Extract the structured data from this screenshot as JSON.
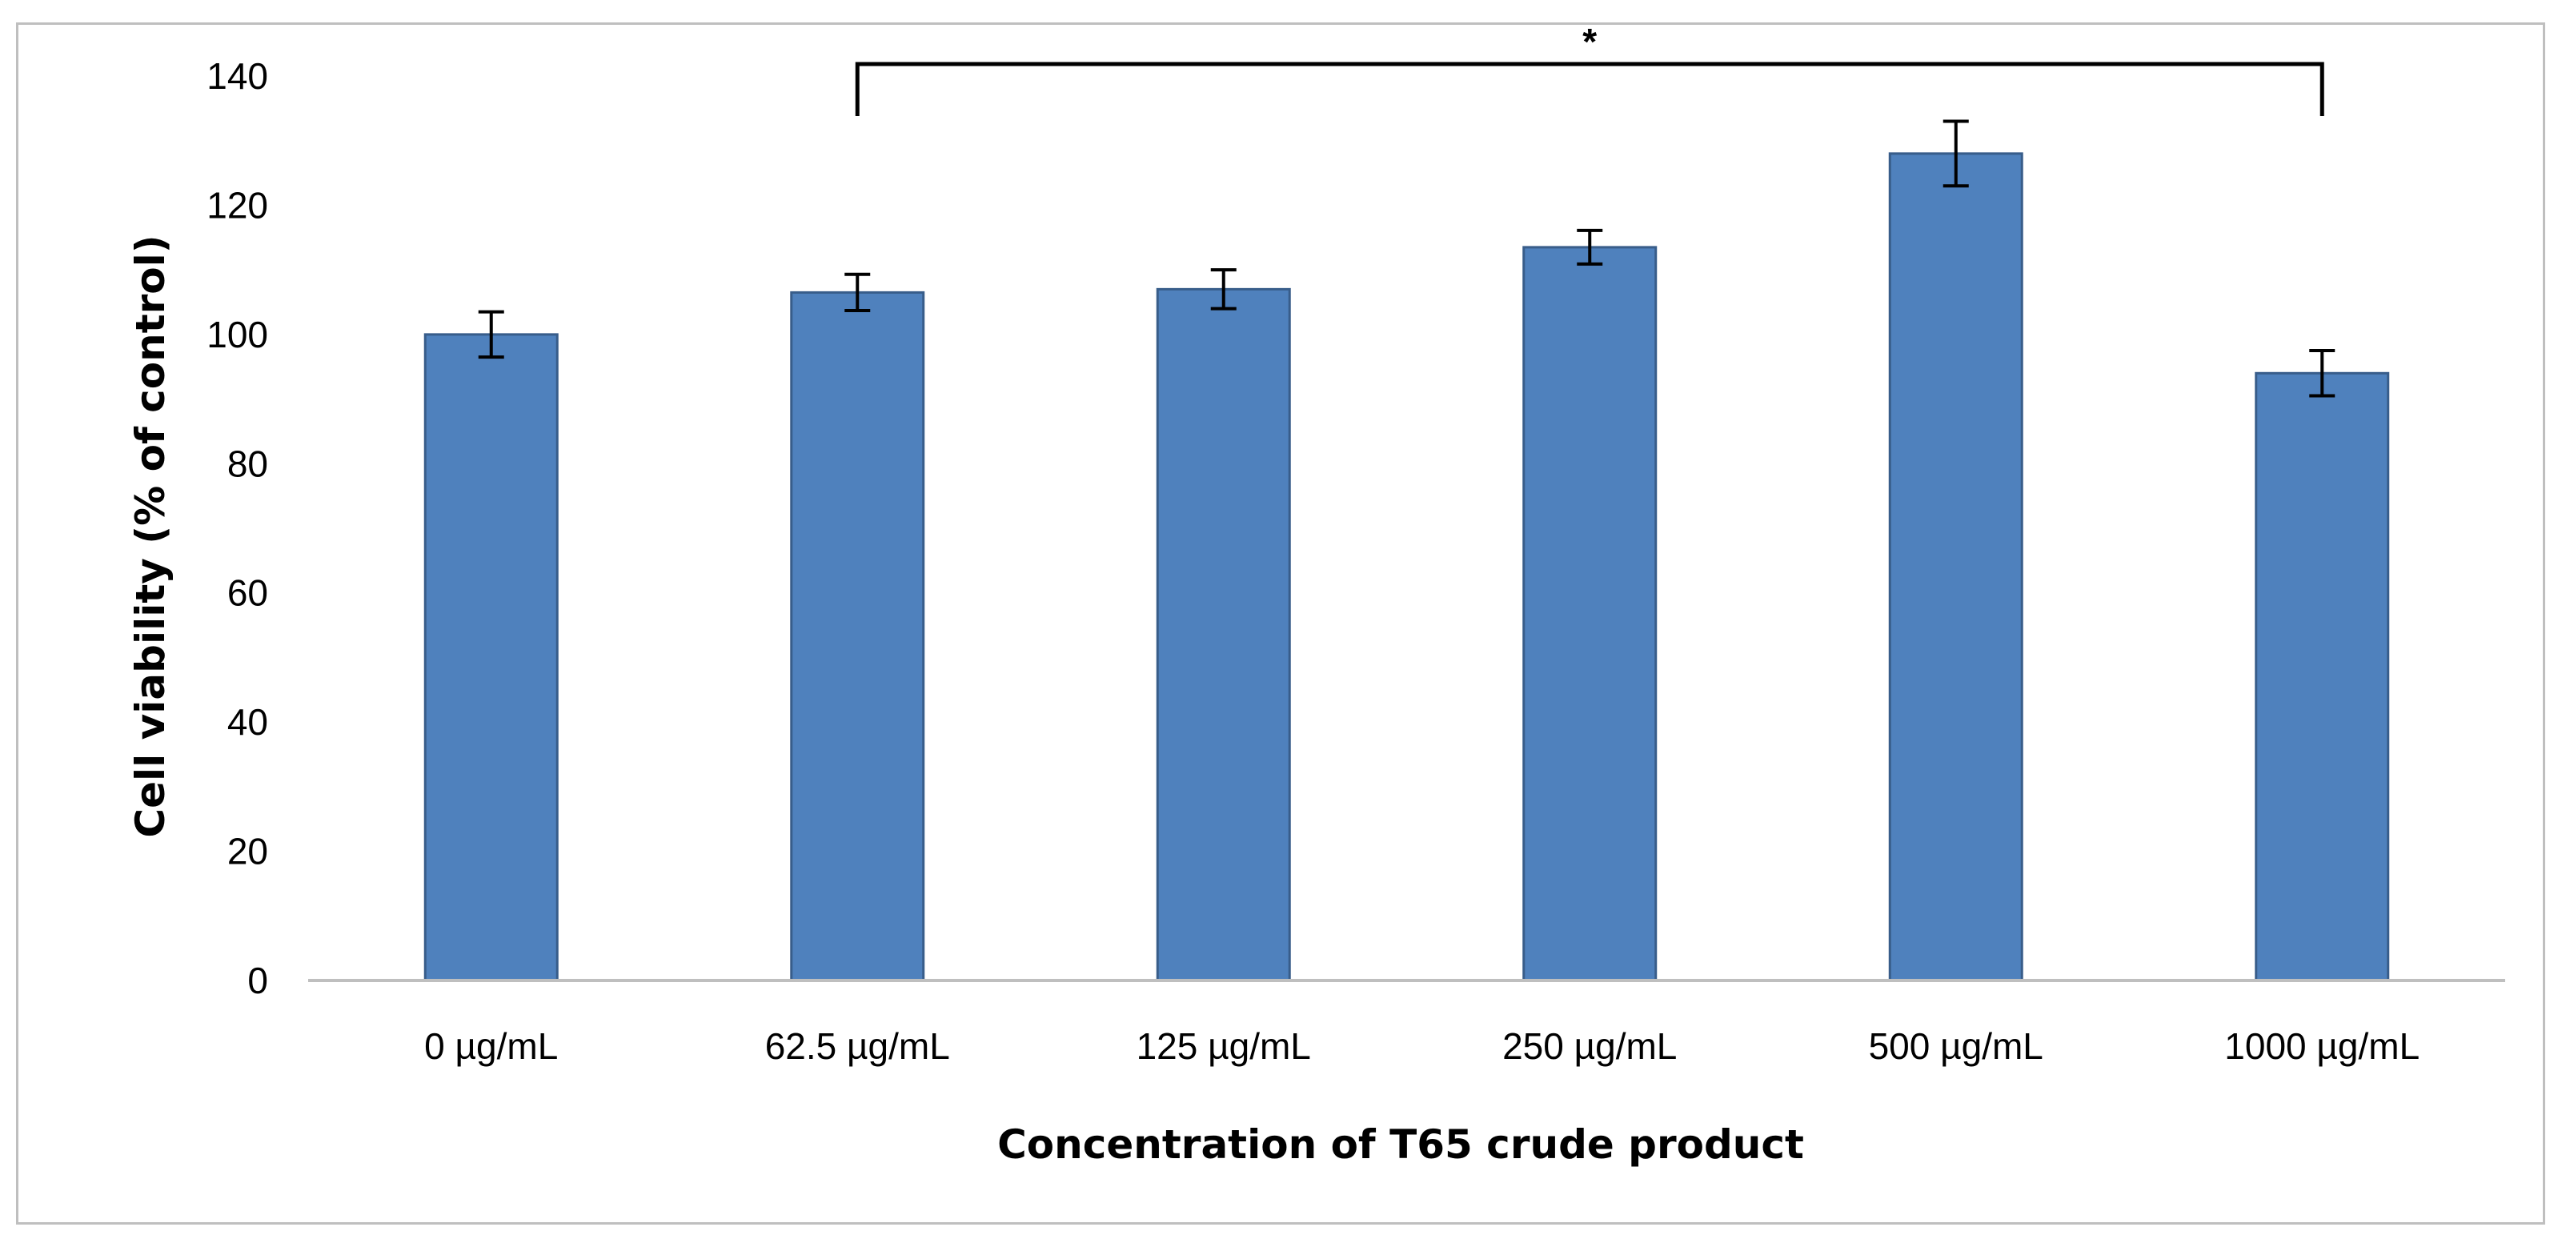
{
  "chart_data": {
    "type": "bar",
    "title": "",
    "xlabel": "Concentration of T65 crude product",
    "ylabel": "Cell viability (% of control)",
    "categories": [
      "0 µg/mL",
      "62.5 µg/mL",
      "125 µg/mL",
      "250 µg/mL",
      "500 µg/mL",
      "1000 µg/mL"
    ],
    "series": [
      {
        "name": "Cell viability",
        "values": [
          100,
          106.5,
          107,
          113.5,
          128,
          94
        ],
        "error": [
          3.5,
          2.8,
          3,
          2.6,
          5,
          3.5
        ]
      }
    ],
    "ylim": [
      0,
      140
    ],
    "yticks": [
      0,
      20,
      40,
      60,
      80,
      100,
      120,
      140
    ],
    "grid": false,
    "legend": "none",
    "significance": {
      "label": "*",
      "from_category": "62.5 µg/mL",
      "to_category": "1000 µg/mL"
    },
    "colors": {
      "bar_fill": "#4f81bd",
      "bar_edge": "#385d8a",
      "axis": "#bfbfbf",
      "text": "#000000"
    }
  }
}
